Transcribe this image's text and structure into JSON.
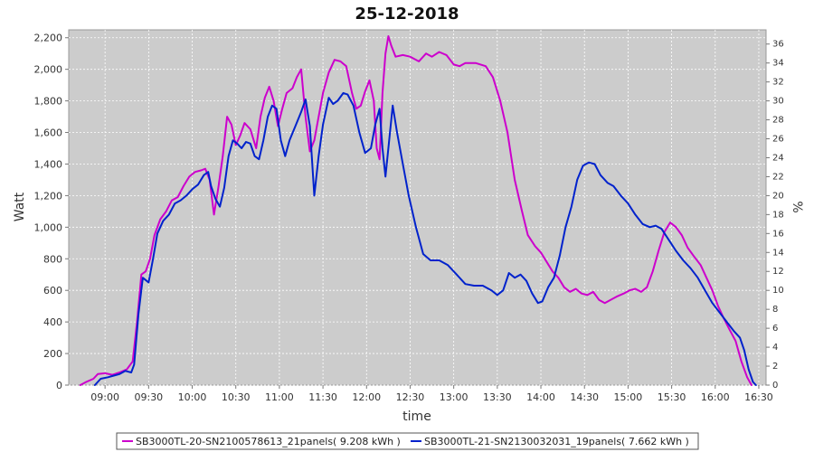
{
  "chart_data": {
    "type": "line",
    "title": "25-12-2018",
    "xlabel": "time",
    "ylabel": "Watt",
    "ylabel_right": "%",
    "x_ticks": [
      "09:00",
      "09:30",
      "10:00",
      "10:30",
      "11:00",
      "11:30",
      "12:00",
      "12:30",
      "13:00",
      "13:30",
      "14:00",
      "14:30",
      "15:00",
      "15:30",
      "16:00",
      "16:30"
    ],
    "xlim": [
      "08:35",
      "16:35"
    ],
    "ylim": [
      0,
      2250
    ],
    "y_ticks": [
      "0",
      "200",
      "400",
      "600",
      "800",
      "1,000",
      "1,200",
      "1,400",
      "1,600",
      "1,800",
      "2,000",
      "2,200"
    ],
    "ylim_right": [
      0,
      37.5
    ],
    "y_ticks_right": [
      "0",
      "2",
      "4",
      "6",
      "8",
      "10",
      "12",
      "14",
      "16",
      "18",
      "20",
      "22",
      "24",
      "26",
      "28",
      "30",
      "32",
      "34",
      "36"
    ],
    "grid": true,
    "legend_position": "bottom",
    "background_color": "#cccccc",
    "series": [
      {
        "name": "SB3000TL-20-SN2100578613_21panels( 9.208 kWh )",
        "color": "#cc00cc",
        "points": [
          [
            "08:43",
            0
          ],
          [
            "08:47",
            20
          ],
          [
            "08:52",
            40
          ],
          [
            "08:55",
            70
          ],
          [
            "09:00",
            75
          ],
          [
            "09:05",
            65
          ],
          [
            "09:10",
            80
          ],
          [
            "09:15",
            100
          ],
          [
            "09:19",
            150
          ],
          [
            "09:22",
            400
          ],
          [
            "09:25",
            700
          ],
          [
            "09:28",
            720
          ],
          [
            "09:31",
            800
          ],
          [
            "09:34",
            950
          ],
          [
            "09:38",
            1050
          ],
          [
            "09:42",
            1100
          ],
          [
            "09:46",
            1170
          ],
          [
            "09:50",
            1190
          ],
          [
            "09:54",
            1260
          ],
          [
            "09:58",
            1320
          ],
          [
            "10:02",
            1350
          ],
          [
            "10:06",
            1360
          ],
          [
            "10:09",
            1370
          ],
          [
            "10:12",
            1300
          ],
          [
            "10:15",
            1080
          ],
          [
            "10:18",
            1250
          ],
          [
            "10:21",
            1450
          ],
          [
            "10:24",
            1700
          ],
          [
            "10:27",
            1650
          ],
          [
            "10:30",
            1520
          ],
          [
            "10:33",
            1580
          ],
          [
            "10:36",
            1660
          ],
          [
            "10:40",
            1620
          ],
          [
            "10:44",
            1500
          ],
          [
            "10:47",
            1700
          ],
          [
            "10:50",
            1820
          ],
          [
            "10:53",
            1890
          ],
          [
            "10:56",
            1800
          ],
          [
            "10:59",
            1640
          ],
          [
            "11:02",
            1750
          ],
          [
            "11:05",
            1850
          ],
          [
            "11:09",
            1880
          ],
          [
            "11:12",
            1950
          ],
          [
            "11:15",
            2000
          ],
          [
            "11:18",
            1700
          ],
          [
            "11:21",
            1480
          ],
          [
            "11:24",
            1550
          ],
          [
            "11:27",
            1700
          ],
          [
            "11:30",
            1850
          ],
          [
            "11:34",
            1980
          ],
          [
            "11:38",
            2060
          ],
          [
            "11:42",
            2050
          ],
          [
            "11:46",
            2020
          ],
          [
            "11:50",
            1850
          ],
          [
            "11:53",
            1750
          ],
          [
            "11:56",
            1770
          ],
          [
            "11:59",
            1860
          ],
          [
            "12:02",
            1930
          ],
          [
            "12:05",
            1800
          ],
          [
            "12:07",
            1500
          ],
          [
            "12:09",
            1430
          ],
          [
            "12:11",
            1850
          ],
          [
            "12:13",
            2100
          ],
          [
            "12:15",
            2210
          ],
          [
            "12:17",
            2150
          ],
          [
            "12:20",
            2080
          ],
          [
            "12:25",
            2090
          ],
          [
            "12:30",
            2080
          ],
          [
            "12:36",
            2050
          ],
          [
            "12:41",
            2100
          ],
          [
            "12:45",
            2080
          ],
          [
            "12:50",
            2110
          ],
          [
            "12:55",
            2090
          ],
          [
            "13:00",
            2030
          ],
          [
            "13:04",
            2020
          ],
          [
            "13:08",
            2040
          ],
          [
            "13:15",
            2040
          ],
          [
            "13:22",
            2020
          ],
          [
            "13:27",
            1950
          ],
          [
            "13:32",
            1800
          ],
          [
            "13:37",
            1600
          ],
          [
            "13:42",
            1300
          ],
          [
            "13:47",
            1100
          ],
          [
            "13:51",
            950
          ],
          [
            "13:56",
            880
          ],
          [
            "14:00",
            840
          ],
          [
            "14:04",
            780
          ],
          [
            "14:08",
            720
          ],
          [
            "14:12",
            680
          ],
          [
            "14:16",
            620
          ],
          [
            "14:20",
            590
          ],
          [
            "14:24",
            610
          ],
          [
            "14:28",
            580
          ],
          [
            "14:32",
            570
          ],
          [
            "14:36",
            590
          ],
          [
            "14:40",
            540
          ],
          [
            "14:44",
            520
          ],
          [
            "14:48",
            540
          ],
          [
            "14:52",
            560
          ],
          [
            "14:57",
            580
          ],
          [
            "15:01",
            600
          ],
          [
            "15:05",
            610
          ],
          [
            "15:09",
            590
          ],
          [
            "15:13",
            620
          ],
          [
            "15:17",
            720
          ],
          [
            "15:21",
            850
          ],
          [
            "15:25",
            970
          ],
          [
            "15:29",
            1030
          ],
          [
            "15:33",
            1000
          ],
          [
            "15:37",
            950
          ],
          [
            "15:41",
            870
          ],
          [
            "15:45",
            820
          ],
          [
            "15:50",
            760
          ],
          [
            "15:54",
            680
          ],
          [
            "15:58",
            600
          ],
          [
            "16:02",
            500
          ],
          [
            "16:06",
            420
          ],
          [
            "16:10",
            350
          ],
          [
            "16:14",
            280
          ],
          [
            "16:18",
            150
          ],
          [
            "16:22",
            50
          ],
          [
            "16:25",
            0
          ]
        ]
      },
      {
        "name": "SB3000TL-21-SN2130032031_19panels( 7.662 kWh )",
        "color": "#0022cc",
        "points": [
          [
            "08:53",
            0
          ],
          [
            "08:57",
            40
          ],
          [
            "09:02",
            50
          ],
          [
            "09:06",
            60
          ],
          [
            "09:10",
            70
          ],
          [
            "09:14",
            90
          ],
          [
            "09:18",
            80
          ],
          [
            "09:20",
            130
          ],
          [
            "09:23",
            450
          ],
          [
            "09:26",
            680
          ],
          [
            "09:30",
            650
          ],
          [
            "09:33",
            800
          ],
          [
            "09:36",
            960
          ],
          [
            "09:40",
            1040
          ],
          [
            "09:44",
            1080
          ],
          [
            "09:48",
            1150
          ],
          [
            "09:52",
            1170
          ],
          [
            "09:56",
            1200
          ],
          [
            "10:00",
            1240
          ],
          [
            "10:04",
            1270
          ],
          [
            "10:08",
            1330
          ],
          [
            "10:11",
            1350
          ],
          [
            "10:13",
            1260
          ],
          [
            "10:16",
            1180
          ],
          [
            "10:19",
            1130
          ],
          [
            "10:22",
            1250
          ],
          [
            "10:25",
            1450
          ],
          [
            "10:28",
            1550
          ],
          [
            "10:31",
            1530
          ],
          [
            "10:34",
            1500
          ],
          [
            "10:37",
            1540
          ],
          [
            "10:40",
            1530
          ],
          [
            "10:43",
            1450
          ],
          [
            "10:46",
            1430
          ],
          [
            "10:49",
            1550
          ],
          [
            "10:52",
            1700
          ],
          [
            "10:55",
            1770
          ],
          [
            "10:58",
            1750
          ],
          [
            "11:01",
            1550
          ],
          [
            "11:04",
            1450
          ],
          [
            "11:07",
            1550
          ],
          [
            "11:11",
            1640
          ],
          [
            "11:15",
            1730
          ],
          [
            "11:18",
            1810
          ],
          [
            "11:21",
            1640
          ],
          [
            "11:24",
            1200
          ],
          [
            "11:27",
            1450
          ],
          [
            "11:30",
            1650
          ],
          [
            "11:34",
            1820
          ],
          [
            "11:37",
            1780
          ],
          [
            "11:40",
            1800
          ],
          [
            "11:44",
            1850
          ],
          [
            "11:47",
            1840
          ],
          [
            "11:51",
            1770
          ],
          [
            "11:55",
            1600
          ],
          [
            "11:59",
            1470
          ],
          [
            "12:03",
            1500
          ],
          [
            "12:06",
            1650
          ],
          [
            "12:09",
            1750
          ],
          [
            "12:11",
            1500
          ],
          [
            "12:13",
            1320
          ],
          [
            "12:15",
            1500
          ],
          [
            "12:18",
            1770
          ],
          [
            "12:21",
            1600
          ],
          [
            "12:25",
            1400
          ],
          [
            "12:29",
            1200
          ],
          [
            "12:34",
            1000
          ],
          [
            "12:39",
            830
          ],
          [
            "12:44",
            790
          ],
          [
            "12:50",
            790
          ],
          [
            "12:56",
            760
          ],
          [
            "13:02",
            700
          ],
          [
            "13:08",
            640
          ],
          [
            "13:14",
            630
          ],
          [
            "13:20",
            630
          ],
          [
            "13:26",
            600
          ],
          [
            "13:30",
            570
          ],
          [
            "13:34",
            600
          ],
          [
            "13:38",
            710
          ],
          [
            "13:42",
            680
          ],
          [
            "13:46",
            700
          ],
          [
            "13:50",
            660
          ],
          [
            "13:54",
            580
          ],
          [
            "13:58",
            520
          ],
          [
            "14:01",
            530
          ],
          [
            "14:05",
            620
          ],
          [
            "14:09",
            680
          ],
          [
            "14:13",
            820
          ],
          [
            "14:17",
            1000
          ],
          [
            "14:21",
            1130
          ],
          [
            "14:25",
            1300
          ],
          [
            "14:29",
            1390
          ],
          [
            "14:33",
            1410
          ],
          [
            "14:37",
            1400
          ],
          [
            "14:41",
            1330
          ],
          [
            "14:46",
            1280
          ],
          [
            "14:50",
            1260
          ],
          [
            "14:55",
            1200
          ],
          [
            "15:00",
            1150
          ],
          [
            "15:05",
            1080
          ],
          [
            "15:10",
            1020
          ],
          [
            "15:15",
            1000
          ],
          [
            "15:19",
            1010
          ],
          [
            "15:23",
            990
          ],
          [
            "15:28",
            920
          ],
          [
            "15:33",
            850
          ],
          [
            "15:38",
            790
          ],
          [
            "15:43",
            740
          ],
          [
            "15:48",
            680
          ],
          [
            "15:53",
            600
          ],
          [
            "15:58",
            520
          ],
          [
            "16:03",
            460
          ],
          [
            "16:08",
            400
          ],
          [
            "16:13",
            340
          ],
          [
            "16:17",
            300
          ],
          [
            "16:20",
            220
          ],
          [
            "16:23",
            100
          ],
          [
            "16:26",
            20
          ],
          [
            "16:28",
            0
          ]
        ]
      }
    ]
  }
}
